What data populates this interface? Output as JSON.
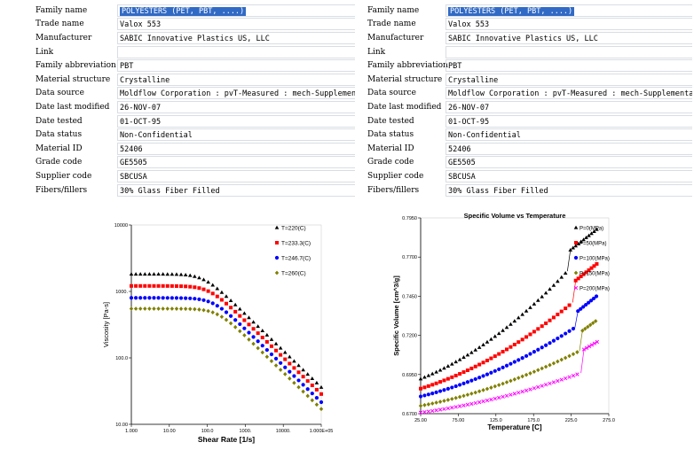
{
  "left_panel": {
    "rows": [
      {
        "label": "Family name",
        "value": "POLYESTERS (PET, PBT, ....)",
        "selected": true
      },
      {
        "label": "Trade name",
        "value": "Valox 553"
      },
      {
        "label": "Manufacturer",
        "value": "SABIC Innovative Plastics US, LLC"
      },
      {
        "label": "Link",
        "value": ""
      },
      {
        "label": "Family abbreviation",
        "value": "PBT"
      },
      {
        "label": "Material structure",
        "value": "Crystalline"
      },
      {
        "label": "Data source",
        "value": "Moldflow Corporation : pvT-Measured : mech-Supplemental"
      },
      {
        "label": "Date last modified",
        "value": "26-NOV-07"
      },
      {
        "label": "Date tested",
        "value": "01-OCT-95"
      },
      {
        "label": "Data status",
        "value": "Non-Confidential"
      },
      {
        "label": "Material ID",
        "value": "52406"
      },
      {
        "label": "Grade code",
        "value": "GE5505"
      },
      {
        "label": "Supplier code",
        "value": "SBCUSA"
      },
      {
        "label": "Fibers/fillers",
        "value": "30% Glass Fiber Filled"
      }
    ]
  },
  "right_panel": {
    "rows": [
      {
        "label": "Family name",
        "value": "POLYESTERS (PET, PBT, ....)",
        "selected": true
      },
      {
        "label": "Trade name",
        "value": "Valox 553"
      },
      {
        "label": "Manufacturer",
        "value": "SABIC Innovative Plastics US, LLC"
      },
      {
        "label": "Link",
        "value": ""
      },
      {
        "label": "Family abbreviation",
        "value": "PBT"
      },
      {
        "label": "Material structure",
        "value": "Crystalline"
      },
      {
        "label": "Data source",
        "value": "Moldflow Corporation : pvT-Measured : mech-Supplemental"
      },
      {
        "label": "Date last modified",
        "value": "26-NOV-07"
      },
      {
        "label": "Date tested",
        "value": "01-OCT-95"
      },
      {
        "label": "Data status",
        "value": "Non-Confidential"
      },
      {
        "label": "Material ID",
        "value": "52406"
      },
      {
        "label": "Grade code",
        "value": "GE5505"
      },
      {
        "label": "Supplier code",
        "value": "SBCUSA"
      },
      {
        "label": "Fibers/fillers",
        "value": "30% Glass Fiber Filled"
      }
    ]
  },
  "chart_data": [
    {
      "type": "scatter",
      "title": "",
      "xlabel": "Shear Rate [1/s]",
      "ylabel": "Viscosity [Pa-s]",
      "x_scale": "log",
      "y_scale": "log",
      "xlim": [
        1,
        100000
      ],
      "ylim": [
        10,
        10000
      ],
      "x_ticks": [
        "1.000",
        "10.00",
        "100.0",
        "1000.",
        "10000.",
        "1.000E+05"
      ],
      "y_ticks": [
        "10.00",
        "100.0",
        "1000.",
        "10000"
      ],
      "legend_position": "top-right",
      "series": [
        {
          "name": "T=220(C)",
          "color": "#000000",
          "marker": "triangle",
          "zero_shear": 1820,
          "crit": 80,
          "n": 0.45
        },
        {
          "name": "T=233.3(C)",
          "color": "#ff0000",
          "marker": "square",
          "zero_shear": 1210,
          "crit": 110,
          "n": 0.45
        },
        {
          "name": "T=246.7(C)",
          "color": "#0000ff",
          "marker": "circle",
          "zero_shear": 800,
          "crit": 140,
          "n": 0.45
        },
        {
          "name": "T=260(C)",
          "color": "#808000",
          "marker": "diamond",
          "zero_shear": 550,
          "crit": 180,
          "n": 0.45
        }
      ]
    },
    {
      "type": "scatter",
      "title": "Specific Volume vs Temperature",
      "xlabel": "Temperature [C]",
      "ylabel": "Specific Volume [cm^3/g]",
      "xlim": [
        25,
        275
      ],
      "ylim": [
        0.67,
        0.795
      ],
      "x_ticks": [
        "25.00",
        "75.00",
        "125.0",
        "175.0",
        "225.0",
        "275.0"
      ],
      "y_ticks": [
        "0.6700",
        "0.6950",
        "0.7200",
        "0.7450",
        "0.7700",
        "0.7950"
      ],
      "legend_position": "top-right",
      "series": [
        {
          "name": "P=0(MPa)",
          "color": "#000000",
          "marker": "triangle",
          "v0": 0.6922,
          "vt": 0.761,
          "tt": 220,
          "vm": 0.7745,
          "v1": 0.788,
          "t1": 260
        },
        {
          "name": "P=50(MPa)",
          "color": "#ff0000",
          "marker": "square",
          "v0": 0.686,
          "vt": 0.741,
          "tt": 227,
          "vm": 0.755,
          "v1": 0.766,
          "t1": 260
        },
        {
          "name": "P=100(MPa)",
          "color": "#0000ff",
          "marker": "circle",
          "v0": 0.681,
          "vt": 0.725,
          "tt": 230,
          "vm": 0.7355,
          "v1": 0.7455,
          "t1": 260
        },
        {
          "name": "P=150(MPa)",
          "color": "#808000",
          "marker": "diamond",
          "v0": 0.675,
          "vt": 0.71,
          "tt": 236,
          "vm": 0.723,
          "v1": 0.73,
          "t1": 260
        },
        {
          "name": "P=200(MPa)",
          "color": "#ff00ff",
          "marker": "cross",
          "v0": 0.6707,
          "vt": 0.696,
          "tt": 238,
          "vm": 0.711,
          "v1": 0.716,
          "t1": 260
        }
      ]
    }
  ]
}
